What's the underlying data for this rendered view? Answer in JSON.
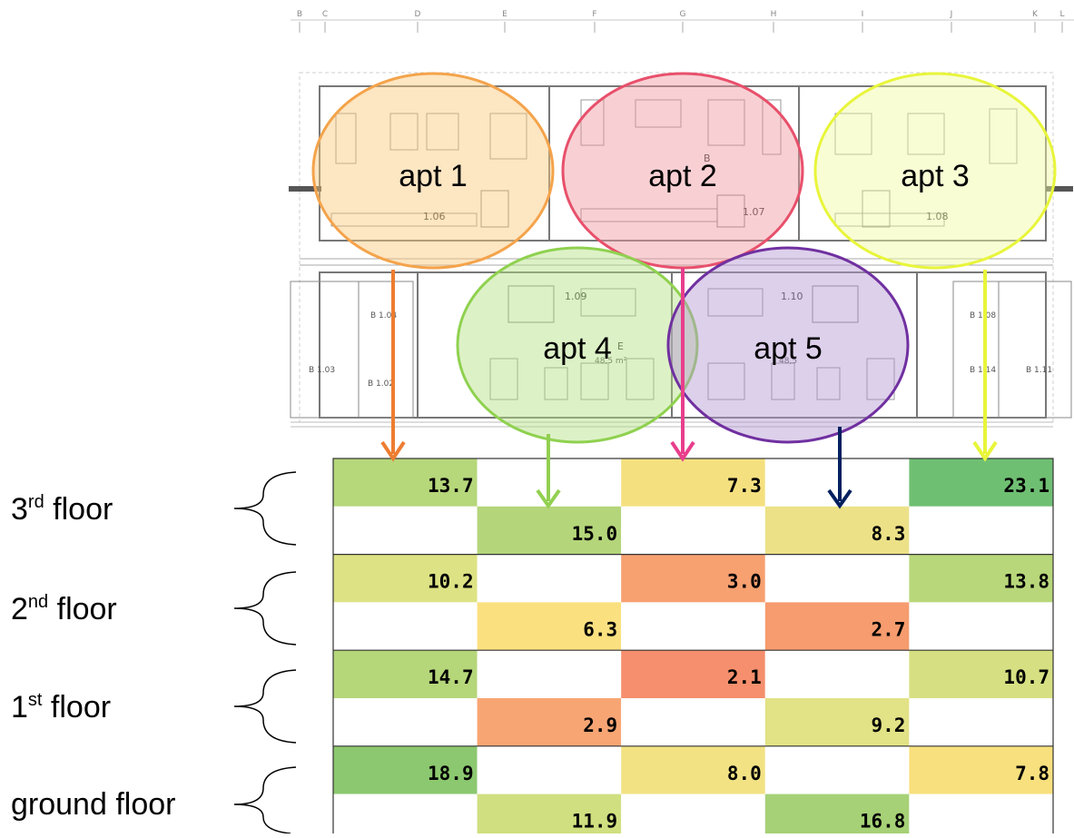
{
  "grid_axis": {
    "letters": [
      "B",
      "C",
      "D",
      "E",
      "F",
      "G",
      "H",
      "I",
      "J",
      "K",
      "L"
    ]
  },
  "apartments": [
    {
      "label": "apt 1",
      "color": "#f4a34b",
      "fill": "rgba(250,200,120,0.45)",
      "room": "1.06"
    },
    {
      "label": "apt 2",
      "color": "#e8506b",
      "fill": "rgba(240,150,160,0.45)",
      "room": "1.07"
    },
    {
      "label": "apt 3",
      "color": "#e8f53a",
      "fill": "rgba(240,250,160,0.45)",
      "room": "1.08"
    },
    {
      "label": "apt 4",
      "color": "#8fd14f",
      "fill": "rgba(180,225,130,0.45)",
      "room": "1.09"
    },
    {
      "label": "apt 5",
      "color": "#7030a0",
      "fill": "rgba(180,150,210,0.45)",
      "room": "1.10"
    }
  ],
  "plan_labels": {
    "apt4_area": "48,5 m²",
    "apt5_area": "48,5",
    "apt4_letter": "E",
    "apt2_letter": "B",
    "left_rooms": [
      "B 1.04",
      "B 1.03",
      "B 1.02"
    ],
    "right_rooms": [
      "B 1.08",
      "B 1.14",
      "B 1.11"
    ]
  },
  "arrow_colors": {
    "apt1": "#ed7d31",
    "apt4": "#92d050",
    "apt2": "#e83e8c",
    "apt5": "#002060",
    "apt3": "#e8f53a"
  },
  "floors": [
    {
      "name": "3",
      "sup": "rd",
      "suffix": " floor"
    },
    {
      "name": "2",
      "sup": "nd",
      "suffix": " floor"
    },
    {
      "name": "1",
      "sup": "st",
      "suffix": " floor"
    },
    {
      "name": "ground floor",
      "sup": "",
      "suffix": ""
    }
  ],
  "table": {
    "rows": [
      [
        {
          "v": "13.7",
          "c": "#b6d77a"
        },
        null,
        {
          "v": "7.3",
          "c": "#f5e080"
        },
        null,
        {
          "v": "23.1",
          "c": "#6fbf73"
        }
      ],
      [
        null,
        {
          "v": "15.0",
          "c": "#b4d57a"
        },
        null,
        {
          "v": "8.3",
          "c": "#ece187"
        },
        null
      ],
      [
        {
          "v": "10.2",
          "c": "#dde284"
        },
        null,
        {
          "v": "3.0",
          "c": "#f7a070"
        },
        null,
        {
          "v": "13.8",
          "c": "#b8d77a"
        }
      ],
      [
        null,
        {
          "v": "6.3",
          "c": "#fbe080"
        },
        null,
        {
          "v": "2.7",
          "c": "#f69c6e"
        },
        null
      ],
      [
        {
          "v": "14.7",
          "c": "#b6d67a"
        },
        null,
        {
          "v": "2.1",
          "c": "#f58f6d"
        },
        null,
        {
          "v": "10.7",
          "c": "#d6e082"
        }
      ],
      [
        null,
        {
          "v": "2.9",
          "c": "#f8a574"
        },
        null,
        {
          "v": "9.2",
          "c": "#e2e286"
        },
        null
      ],
      [
        {
          "v": "18.9",
          "c": "#8cc86f"
        },
        null,
        {
          "v": "8.0",
          "c": "#f2e284"
        },
        null,
        {
          "v": "7.8",
          "c": "#f8e07e"
        }
      ],
      [
        null,
        {
          "v": "11.9",
          "c": "#d0df80"
        },
        null,
        {
          "v": "16.8",
          "c": "#a6d176"
        },
        null
      ]
    ]
  }
}
